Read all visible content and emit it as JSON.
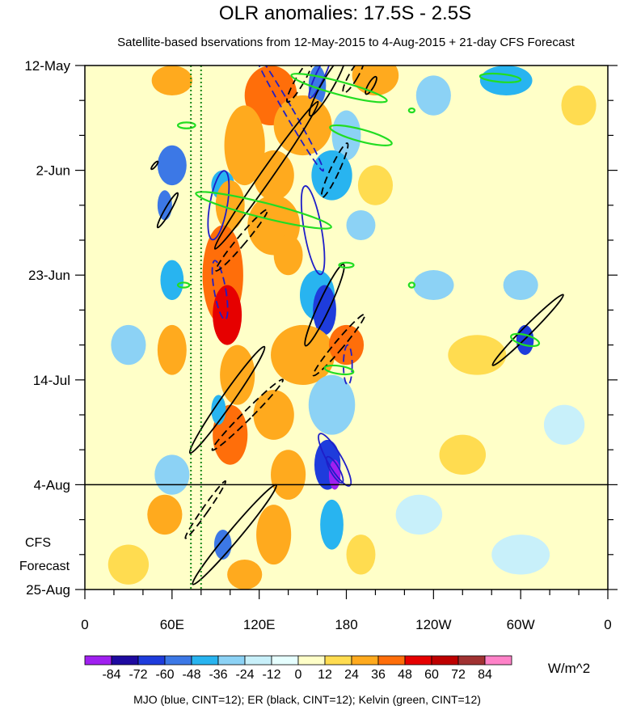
{
  "chart_data": {
    "type": "heatmap",
    "title": "OLR anomalies: 17.5S - 2.5S",
    "subtitle": "Satellite-based bservations from 12-May-2015 to 4-Aug-2015 + 21-day CFS Forecast",
    "x_ticks": [
      {
        "label": "0",
        "lon": 0
      },
      {
        "label": "60E",
        "lon": 60
      },
      {
        "label": "120E",
        "lon": 120
      },
      {
        "label": "180",
        "lon": 180
      },
      {
        "label": "120W",
        "lon": 240
      },
      {
        "label": "60W",
        "lon": 300
      },
      {
        "label": "0",
        "lon": 360
      }
    ],
    "xlim": [
      0,
      360
    ],
    "y_ticks": [
      {
        "label": "12-May",
        "day": 0
      },
      {
        "label": "2-Jun",
        "day": 21
      },
      {
        "label": "23-Jun",
        "day": 42
      },
      {
        "label": "14-Jul",
        "day": 63
      },
      {
        "label": "4-Aug",
        "day": 84
      },
      {
        "label": "25-Aug",
        "day": 105
      }
    ],
    "ylim": [
      0,
      105
    ],
    "observation_end": "4-Aug",
    "forecast_label": [
      "CFS",
      "Forecast"
    ],
    "colorbar": {
      "unit": "W/m^2",
      "labels": [
        "-84",
        "-72",
        "-60",
        "-48",
        "-36",
        "-24",
        "-12",
        "0",
        "12",
        "24",
        "36",
        "48",
        "60",
        "72",
        "84"
      ],
      "colors": [
        "#a020f0",
        "#1e0aa0",
        "#1e3cdc",
        "#3c78e6",
        "#28b4f0",
        "#8cd2f5",
        "#c8f0fa",
        "#e6ffff",
        "#ffffc8",
        "#ffdc50",
        "#ffaa1e",
        "#ff6e0a",
        "#e60000",
        "#be0000",
        "#a03232",
        "#ff82c8"
      ]
    },
    "caption": "MJO (blue, CINT=12); ER (black, CINT=12); Kelvin (green, CINT=12)",
    "reference_lines_lon": [
      73,
      80
    ],
    "anomaly_patches": [
      {
        "lon": 60,
        "day": 3,
        "rlon": 14,
        "rday": 3,
        "v": 24
      },
      {
        "lon": 128,
        "day": 6,
        "rlon": 18,
        "rday": 6,
        "v": 36
      },
      {
        "lon": 160,
        "day": 4,
        "rlon": 6,
        "rday": 4,
        "v": -48
      },
      {
        "lon": 150,
        "day": 12,
        "rlon": 20,
        "rday": 6,
        "v": 24
      },
      {
        "lon": 200,
        "day": 2,
        "rlon": 16,
        "rday": 4,
        "v": 24
      },
      {
        "lon": 180,
        "day": 14,
        "rlon": 10,
        "rday": 5,
        "v": -24
      },
      {
        "lon": 240,
        "day": 6,
        "rlon": 12,
        "rday": 4,
        "v": -24
      },
      {
        "lon": 290,
        "day": 3,
        "rlon": 18,
        "rday": 3,
        "v": -36
      },
      {
        "lon": 340,
        "day": 8,
        "rlon": 12,
        "rday": 4,
        "v": 12
      },
      {
        "lon": 110,
        "day": 16,
        "rlon": 14,
        "rday": 8,
        "v": 24
      },
      {
        "lon": 60,
        "day": 20,
        "rlon": 10,
        "rday": 4,
        "v": -48
      },
      {
        "lon": 95,
        "day": 24,
        "rlon": 8,
        "rday": 3,
        "v": -36
      },
      {
        "lon": 130,
        "day": 22,
        "rlon": 14,
        "rday": 5,
        "v": 24
      },
      {
        "lon": 170,
        "day": 22,
        "rlon": 14,
        "rday": 5,
        "v": -36
      },
      {
        "lon": 200,
        "day": 24,
        "rlon": 12,
        "rday": 4,
        "v": 12
      },
      {
        "lon": 55,
        "day": 28,
        "rlon": 5,
        "rday": 3,
        "v": -48
      },
      {
        "lon": 100,
        "day": 28,
        "rlon": 10,
        "rday": 5,
        "v": 24
      },
      {
        "lon": 130,
        "day": 32,
        "rlon": 18,
        "rday": 6,
        "v": 24
      },
      {
        "lon": 190,
        "day": 32,
        "rlon": 10,
        "rday": 3,
        "v": -24
      },
      {
        "lon": 95,
        "day": 42,
        "rlon": 14,
        "rday": 10,
        "v": 36
      },
      {
        "lon": 60,
        "day": 43,
        "rlon": 8,
        "rday": 4,
        "v": -36
      },
      {
        "lon": 160,
        "day": 46,
        "rlon": 12,
        "rday": 5,
        "v": -36
      },
      {
        "lon": 140,
        "day": 38,
        "rlon": 10,
        "rday": 4,
        "v": 24
      },
      {
        "lon": 240,
        "day": 44,
        "rlon": 14,
        "rday": 3,
        "v": -24
      },
      {
        "lon": 300,
        "day": 44,
        "rlon": 12,
        "rday": 3,
        "v": -24
      },
      {
        "lon": 165,
        "day": 49,
        "rlon": 8,
        "rday": 5,
        "v": -60
      },
      {
        "lon": 98,
        "day": 50,
        "rlon": 10,
        "rday": 6,
        "v": 48
      },
      {
        "lon": 150,
        "day": 58,
        "rlon": 22,
        "rday": 6,
        "v": 24
      },
      {
        "lon": 180,
        "day": 56,
        "rlon": 12,
        "rday": 4,
        "v": 36
      },
      {
        "lon": 60,
        "day": 57,
        "rlon": 10,
        "rday": 5,
        "v": 24
      },
      {
        "lon": 303,
        "day": 55,
        "rlon": 6,
        "rday": 3,
        "v": -60
      },
      {
        "lon": 270,
        "day": 58,
        "rlon": 20,
        "rday": 4,
        "v": 12
      },
      {
        "lon": 30,
        "day": 56,
        "rlon": 12,
        "rday": 4,
        "v": -24
      },
      {
        "lon": 105,
        "day": 62,
        "rlon": 12,
        "rday": 6,
        "v": 24
      },
      {
        "lon": 170,
        "day": 68,
        "rlon": 16,
        "rday": 6,
        "v": -24
      },
      {
        "lon": 100,
        "day": 74,
        "rlon": 12,
        "rday": 6,
        "v": 36
      },
      {
        "lon": 92,
        "day": 69,
        "rlon": 5,
        "rday": 3,
        "v": -36
      },
      {
        "lon": 130,
        "day": 70,
        "rlon": 14,
        "rday": 5,
        "v": 24
      },
      {
        "lon": 167,
        "day": 80,
        "rlon": 9,
        "rday": 5,
        "v": -60
      },
      {
        "lon": 172,
        "day": 82,
        "rlon": 4,
        "rday": 3,
        "v": -84
      },
      {
        "lon": 140,
        "day": 82,
        "rlon": 12,
        "rday": 5,
        "v": 24
      },
      {
        "lon": 60,
        "day": 82,
        "rlon": 12,
        "rday": 4,
        "v": -24
      },
      {
        "lon": 260,
        "day": 78,
        "rlon": 16,
        "rday": 4,
        "v": 12
      },
      {
        "lon": 330,
        "day": 72,
        "rlon": 14,
        "rday": 4,
        "v": -12
      },
      {
        "lon": 55,
        "day": 90,
        "rlon": 12,
        "rday": 4,
        "v": 24
      },
      {
        "lon": 95,
        "day": 96,
        "rlon": 6,
        "rday": 3,
        "v": -48
      },
      {
        "lon": 130,
        "day": 94,
        "rlon": 12,
        "rday": 6,
        "v": 24
      },
      {
        "lon": 170,
        "day": 92,
        "rlon": 8,
        "rday": 5,
        "v": -36
      },
      {
        "lon": 190,
        "day": 98,
        "rlon": 10,
        "rday": 4,
        "v": 12
      },
      {
        "lon": 230,
        "day": 90,
        "rlon": 16,
        "rday": 4,
        "v": -12
      },
      {
        "lon": 300,
        "day": 98,
        "rlon": 20,
        "rday": 4,
        "v": -12
      },
      {
        "lon": 110,
        "day": 102,
        "rlon": 12,
        "rday": 3,
        "v": 24
      },
      {
        "lon": 30,
        "day": 100,
        "rlon": 14,
        "rday": 4,
        "v": 12
      }
    ],
    "mjo_contours": [
      {
        "lon": 140,
        "day": 9,
        "rlon": 3,
        "rday": 14,
        "rot": -30,
        "dash": true
      },
      {
        "lon": 162,
        "day": 2,
        "rlon": 3,
        "rday": 5,
        "rot": 25,
        "dash": false
      },
      {
        "lon": 92,
        "day": 28,
        "rlon": 6,
        "rday": 7,
        "rot": 10,
        "dash": false
      },
      {
        "lon": 157,
        "day": 33,
        "rlon": 6,
        "rday": 9,
        "rot": -10,
        "dash": false
      },
      {
        "lon": 93,
        "day": 45,
        "rlon": 4,
        "rday": 6,
        "rot": -10,
        "dash": true
      },
      {
        "lon": 181,
        "day": 60,
        "rlon": 3,
        "rday": 4,
        "rot": 0,
        "dash": true
      },
      {
        "lon": 172,
        "day": 79,
        "rlon": 5,
        "rday": 6,
        "rot": -30,
        "dash": false
      },
      {
        "lon": 172,
        "day": 81,
        "rlon": 3,
        "rday": 3,
        "rot": -30,
        "dash": false
      }
    ],
    "er_contours": [
      {
        "lon": 125,
        "day": 22,
        "rlon": 4,
        "rday": 18,
        "rot": 35,
        "dash": false
      },
      {
        "lon": 167,
        "day": 4,
        "rlon": 4,
        "rday": 7,
        "rot": 30,
        "dash": false
      },
      {
        "lon": 185,
        "day": 2,
        "rlon": 3,
        "rday": 4,
        "rot": 30,
        "dash": true
      },
      {
        "lon": 148,
        "day": 3,
        "rlon": 3,
        "rday": 5,
        "rot": 30,
        "dash": true
      },
      {
        "lon": 197,
        "day": 4,
        "rlon": 2,
        "rday": 2,
        "rot": 30,
        "dash": false
      },
      {
        "lon": 172,
        "day": 21,
        "rlon": 3,
        "rday": 6,
        "rot": 25,
        "dash": true
      },
      {
        "lon": 108,
        "day": 35,
        "rlon": 3,
        "rday": 8,
        "rot": 40,
        "dash": true
      },
      {
        "lon": 165,
        "day": 48,
        "rlon": 4,
        "rday": 9,
        "rot": 25,
        "dash": false
      },
      {
        "lon": 175,
        "day": 56,
        "rlon": 3,
        "rday": 8,
        "rot": 40,
        "dash": true
      },
      {
        "lon": 98,
        "day": 67,
        "rlon": 4,
        "rday": 13,
        "rot": 35,
        "dash": false
      },
      {
        "lon": 112,
        "day": 70,
        "rlon": 3,
        "rday": 10,
        "rot": 45,
        "dash": true
      },
      {
        "lon": 305,
        "day": 53,
        "rlon": 3,
        "rday": 10,
        "rot": 45,
        "dash": false
      },
      {
        "lon": 83,
        "day": 89,
        "rlon": 2,
        "rday": 7,
        "rot": 35,
        "dash": true
      },
      {
        "lon": 103,
        "day": 94,
        "rlon": 4,
        "rday": 13,
        "rot": 40,
        "dash": false
      },
      {
        "lon": 48,
        "day": 20,
        "rlon": 1,
        "rday": 1,
        "rot": 40,
        "dash": false
      },
      {
        "lon": 57,
        "day": 29,
        "rlon": 2,
        "rday": 4,
        "rot": 30,
        "dash": false
      }
    ],
    "kelvin_contours": [
      {
        "lon": 123,
        "day": 29,
        "rlon": 48,
        "rday": 1.5,
        "rot": 14,
        "dash": false
      },
      {
        "lon": 175,
        "day": 4.5,
        "rlon": 34,
        "rday": 1.3,
        "rot": 15,
        "dash": false
      },
      {
        "lon": 190,
        "day": 14,
        "rlon": 22,
        "rday": 1.2,
        "rot": 15,
        "dash": false
      },
      {
        "lon": 286,
        "day": 2.5,
        "rlon": 14,
        "rday": 0.8,
        "rot": 5,
        "dash": false
      },
      {
        "lon": 70,
        "day": 12,
        "rlon": 6,
        "rday": 0.6,
        "rot": 0,
        "dash": false
      },
      {
        "lon": 175,
        "day": 61,
        "rlon": 10,
        "rday": 0.8,
        "rot": 8,
        "dash": false
      },
      {
        "lon": 303,
        "day": 55,
        "rlon": 10,
        "rday": 1.0,
        "rot": 15,
        "dash": false
      },
      {
        "lon": 180,
        "day": 40,
        "rlon": 5,
        "rday": 0.5,
        "rot": 0,
        "dash": false
      },
      {
        "lon": 225,
        "day": 44,
        "rlon": 2,
        "rday": 0.5,
        "rot": 0,
        "dash": false
      },
      {
        "lon": 68,
        "day": 44,
        "rlon": 4,
        "rday": 0.5,
        "rot": 0,
        "dash": false
      },
      {
        "lon": 225,
        "day": 9,
        "rlon": 2,
        "rday": 0.4,
        "rot": 0,
        "dash": false
      }
    ]
  }
}
